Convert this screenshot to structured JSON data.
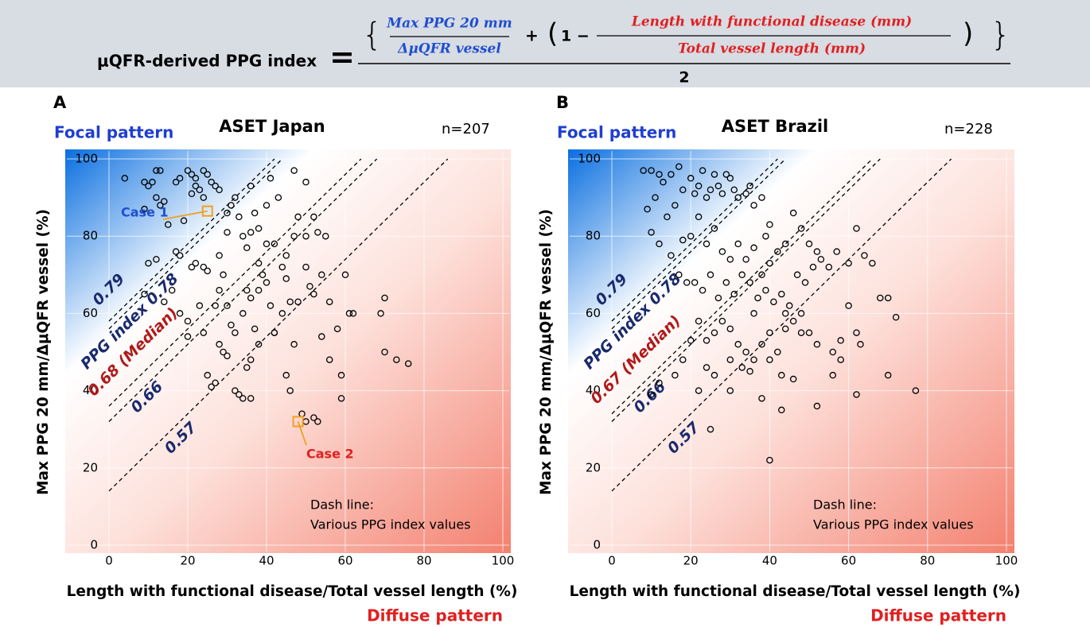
{
  "header": {
    "label": "μQFR-derived PPG index",
    "equals": "=",
    "numerator_top": "Max PPG 20 mm",
    "numerator_bottom": "ΔμQFR vessel",
    "plus": "+",
    "one_minus": "1 −",
    "ratio_top": "Length with functional disease (mm)",
    "ratio_bottom": "Total vessel length (mm)",
    "denominator": "2"
  },
  "chart_data": [
    {
      "type": "scatter",
      "panel": "A",
      "title": "ASET Japan",
      "n_label": "n=207",
      "focal_label": "Focal pattern",
      "diffuse_label": "Diffuse pattern",
      "xlabel": "Length with functional disease/Total vessel length (%)",
      "ylabel": "Max PPG 20 mm/ΔμQFR vessel (%)",
      "xlim": [
        0,
        100
      ],
      "ylim": [
        0,
        100
      ],
      "xticks": [
        0,
        20,
        40,
        60,
        80,
        100
      ],
      "yticks": [
        0,
        20,
        40,
        60,
        80,
        100
      ],
      "grid": true,
      "point_color": "#000000",
      "x": [
        4,
        9,
        10,
        11,
        12,
        13,
        12,
        14,
        13,
        9,
        15,
        17,
        18,
        20,
        21,
        22,
        22,
        23,
        24,
        25,
        26,
        27,
        28,
        21,
        24,
        19,
        17,
        18,
        21,
        22,
        25,
        28,
        30,
        30,
        31,
        32,
        33,
        34,
        35,
        36,
        37,
        38,
        39,
        40,
        41,
        42,
        43,
        44,
        45,
        47,
        48,
        50,
        52,
        53,
        55,
        10,
        12,
        9,
        14,
        16,
        18,
        20,
        23,
        24,
        27,
        28,
        29,
        30,
        31,
        32,
        34,
        35,
        36,
        37,
        38,
        40,
        41,
        42,
        44,
        46,
        48,
        50,
        51,
        52,
        54,
        56,
        58,
        60,
        61,
        62,
        69,
        70,
        70,
        73,
        76,
        47,
        45,
        46,
        49,
        50,
        52,
        53,
        59,
        59,
        56,
        54,
        33,
        34,
        36,
        32,
        27,
        26,
        25,
        28,
        30,
        35,
        36,
        38,
        42,
        20,
        24,
        29,
        40,
        45,
        47,
        50,
        36,
        38
      ],
      "y": [
        95,
        94,
        93,
        94,
        97,
        97,
        90,
        89,
        88,
        87,
        83,
        94,
        95,
        97,
        96,
        95,
        93,
        92,
        97,
        96,
        94,
        93,
        92,
        91,
        90,
        84,
        76,
        75,
        72,
        73,
        71,
        75,
        81,
        86,
        88,
        90,
        85,
        80,
        77,
        93,
        86,
        73,
        70,
        88,
        95,
        78,
        90,
        72,
        69,
        97,
        85,
        94,
        85,
        81,
        80,
        73,
        74,
        65,
        63,
        66,
        60,
        58,
        62,
        55,
        62,
        66,
        50,
        62,
        57,
        55,
        60,
        66,
        64,
        56,
        66,
        68,
        62,
        55,
        60,
        63,
        63,
        72,
        67,
        65,
        70,
        63,
        56,
        70,
        60,
        60,
        60,
        64,
        50,
        48,
        47,
        52,
        44,
        40,
        34,
        32,
        33,
        32,
        38,
        44,
        48,
        54,
        39,
        38,
        38,
        40,
        42,
        41,
        44,
        52,
        49,
        46,
        48,
        52,
        55,
        54,
        72,
        70,
        78,
        75,
        80,
        80,
        81,
        82
      ],
      "index_line_color": "#000000",
      "index_lines": [
        {
          "value": 0.79,
          "label": "0.79",
          "color": "#1a2a6c"
        },
        {
          "value": 0.78,
          "label": "PPG index 0.78",
          "color": "#1a2a6c"
        },
        {
          "value": 0.68,
          "label": "0.68 (Median)",
          "color": "#b01a1a"
        },
        {
          "value": 0.66,
          "label": "0.66",
          "color": "#1a2a6c"
        },
        {
          "value": 0.57,
          "label": "0.57",
          "color": "#1a2a6c"
        }
      ],
      "annotation": [
        "Dash line:",
        "Various PPG index values"
      ],
      "case_color": "#f0a020",
      "cases": [
        {
          "label": "Case 1",
          "x": 25,
          "y": 86.5,
          "color": "#1f4fd0"
        },
        {
          "label": "Case 2",
          "x": 48,
          "y": 32,
          "color": "#e02020"
        }
      ]
    },
    {
      "type": "scatter",
      "panel": "B",
      "title": "ASET Brazil",
      "n_label": "n=228",
      "focal_label": "Focal pattern",
      "diffuse_label": "Diffuse pattern",
      "xlabel": "Length with functional disease/Total vessel length (%)",
      "ylabel": "Max PPG 20 mm/ΔμQFR vessel (%)",
      "xlim": [
        0,
        100
      ],
      "ylim": [
        0,
        100
      ],
      "xticks": [
        0,
        20,
        40,
        60,
        80,
        100
      ],
      "yticks": [
        0,
        20,
        40,
        60,
        80,
        100
      ],
      "grid": true,
      "point_color": "#000000",
      "x": [
        8,
        10,
        13,
        12,
        15,
        17,
        18,
        20,
        21,
        22,
        23,
        24,
        25,
        26,
        27,
        28,
        29,
        30,
        31,
        32,
        34,
        35,
        36,
        38,
        39,
        40,
        9,
        11,
        14,
        16,
        18,
        20,
        22,
        24,
        26,
        28,
        30,
        32,
        34,
        36,
        38,
        40,
        42,
        44,
        46,
        48,
        50,
        52,
        10,
        12,
        15,
        17,
        19,
        21,
        23,
        25,
        27,
        29,
        31,
        33,
        35,
        37,
        39,
        41,
        43,
        45,
        47,
        49,
        51,
        53,
        55,
        57,
        60,
        62,
        64,
        66,
        68,
        70,
        72,
        60,
        62,
        58,
        56,
        52,
        50,
        48,
        46,
        44,
        42,
        40,
        38,
        36,
        34,
        32,
        30,
        28,
        26,
        24,
        22,
        20,
        18,
        16,
        12,
        10,
        22,
        24,
        26,
        30,
        33,
        35,
        40,
        43,
        46,
        52,
        56,
        58,
        62,
        63,
        70,
        77,
        43,
        40,
        25,
        38,
        30,
        36,
        44,
        48
      ],
      "y": [
        97,
        97,
        94,
        96,
        96,
        98,
        92,
        95,
        91,
        93,
        97,
        90,
        92,
        96,
        93,
        91,
        96,
        95,
        92,
        90,
        91,
        93,
        88,
        90,
        80,
        83,
        87,
        90,
        85,
        88,
        79,
        80,
        85,
        78,
        82,
        76,
        74,
        78,
        74,
        77,
        70,
        73,
        76,
        78,
        86,
        82,
        78,
        76,
        81,
        78,
        75,
        70,
        68,
        68,
        66,
        70,
        64,
        68,
        65,
        70,
        68,
        64,
        66,
        63,
        65,
        62,
        70,
        68,
        72,
        74,
        72,
        76,
        73,
        82,
        75,
        73,
        64,
        64,
        59,
        62,
        55,
        53,
        50,
        52,
        55,
        60,
        58,
        56,
        50,
        55,
        52,
        48,
        50,
        52,
        56,
        58,
        55,
        53,
        58,
        53,
        48,
        44,
        42,
        39,
        40,
        46,
        44,
        48,
        46,
        45,
        48,
        44,
        43,
        36,
        44,
        48,
        39,
        52,
        44,
        40,
        35,
        22,
        30,
        38,
        40,
        60,
        60,
        55
      ],
      "index_line_color": "#000000",
      "index_lines": [
        {
          "value": 0.79,
          "label": "0.79",
          "color": "#1a2a6c"
        },
        {
          "value": 0.78,
          "label": "PPG index 0.78",
          "color": "#1a2a6c"
        },
        {
          "value": 0.67,
          "label": "0.67 (Median)",
          "color": "#b01a1a"
        },
        {
          "value": 0.66,
          "label": "0.66",
          "color": "#1a2a6c"
        },
        {
          "value": 0.57,
          "label": "0.57",
          "color": "#1a2a6c"
        }
      ],
      "annotation": [
        "Dash line:",
        "Various PPG index values"
      ],
      "case_color": "#f0a020",
      "cases": []
    }
  ]
}
